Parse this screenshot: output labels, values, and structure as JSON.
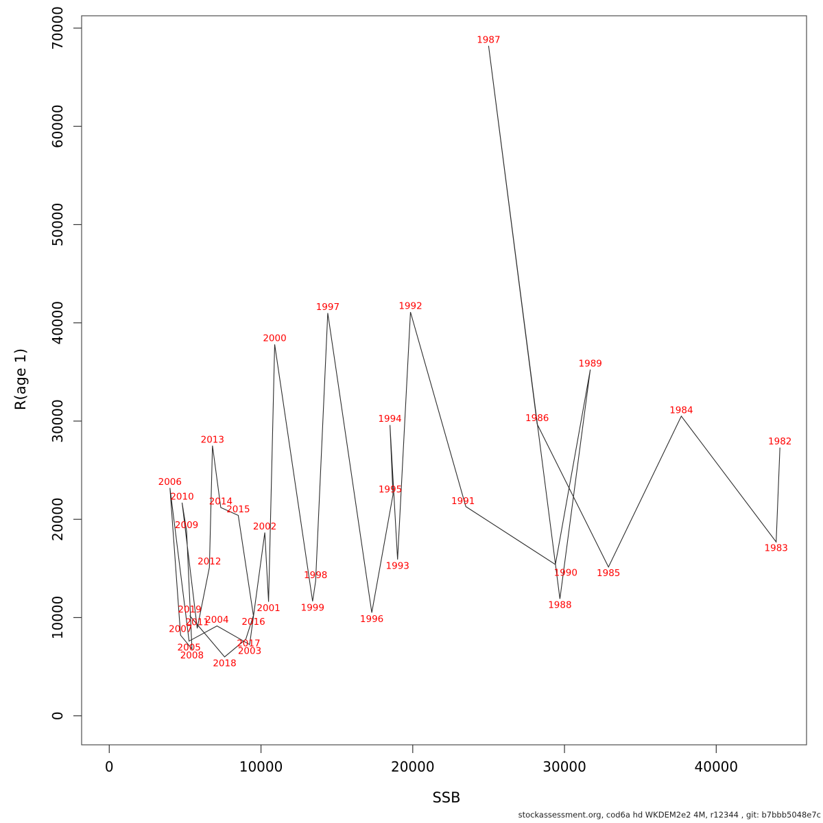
{
  "chart": {
    "xlabel": "SSB",
    "ylabel": "R(age 1)",
    "footer": "stockassessment.org, cod6a  hd  WKDEM2e2  4M, r12344 , git: b7bbb5048e7c",
    "label_color": "#ff0000",
    "line_color": "#2b2b2b",
    "x_ticks": [
      0,
      10000,
      20000,
      30000,
      40000
    ],
    "y_ticks": [
      0,
      10000,
      20000,
      30000,
      40000,
      50000,
      60000,
      70000
    ]
  },
  "chart_data": {
    "type": "line",
    "title": "",
    "xlabel": "SSB",
    "ylabel": "R(age 1)",
    "xlim": [
      -1800,
      45900
    ],
    "ylim": [
      -2950,
      71250
    ],
    "grid": false,
    "legend": "none",
    "description": "Stock-recruitment scatter: SSB vs recruitment at age 1, points labelled by year and connected in chronological order",
    "points": [
      {
        "year": "1982",
        "ssb": 44200,
        "rec": 27300,
        "label_pos": "above"
      },
      {
        "year": "1983",
        "ssb": 43950,
        "rec": 17700,
        "label_pos": "below"
      },
      {
        "year": "1984",
        "ssb": 37700,
        "rec": 30500,
        "label_pos": "above"
      },
      {
        "year": "1985",
        "ssb": 32900,
        "rec": 15150,
        "label_pos": "below"
      },
      {
        "year": "1986",
        "ssb": 28200,
        "rec": 29700,
        "label_pos": "above"
      },
      {
        "year": "1987",
        "ssb": 25000,
        "rec": 68200,
        "label_pos": "above"
      },
      {
        "year": "1988",
        "ssb": 29700,
        "rec": 11900,
        "label_pos": "below"
      },
      {
        "year": "1989",
        "ssb": 31700,
        "rec": 35250,
        "label_pos": "above"
      },
      {
        "year": "1990",
        "ssb": 29400,
        "rec": 15400,
        "label_pos": "below-right"
      },
      {
        "year": "1991",
        "ssb": 23500,
        "rec": 21300,
        "label_pos": "above-left"
      },
      {
        "year": "1992",
        "ssb": 19850,
        "rec": 41100,
        "label_pos": "above"
      },
      {
        "year": "1993",
        "ssb": 19000,
        "rec": 15900,
        "label_pos": "below"
      },
      {
        "year": "1994",
        "ssb": 18500,
        "rec": 29600,
        "label_pos": "above"
      },
      {
        "year": "1995",
        "ssb": 18700,
        "rec": 22500,
        "label_pos": "above-left"
      },
      {
        "year": "1996",
        "ssb": 17300,
        "rec": 10500,
        "label_pos": "below"
      },
      {
        "year": "1997",
        "ssb": 14400,
        "rec": 41000,
        "label_pos": "above"
      },
      {
        "year": "1998",
        "ssb": 13600,
        "rec": 13700,
        "label_pos": "above"
      },
      {
        "year": "1999",
        "ssb": 13400,
        "rec": 11650,
        "label_pos": "below"
      },
      {
        "year": "2000",
        "ssb": 10900,
        "rec": 37800,
        "label_pos": "above"
      },
      {
        "year": "2001",
        "ssb": 10500,
        "rec": 11600,
        "label_pos": "below"
      },
      {
        "year": "2002",
        "ssb": 10250,
        "rec": 18650,
        "label_pos": "above"
      },
      {
        "year": "2003",
        "ssb": 9250,
        "rec": 7250,
        "label_pos": "below"
      },
      {
        "year": "2004",
        "ssb": 7100,
        "rec": 9150,
        "label_pos": "above"
      },
      {
        "year": "2005",
        "ssb": 5260,
        "rec": 7600,
        "label_pos": "below"
      },
      {
        "year": "2006",
        "ssb": 4000,
        "rec": 23200,
        "label_pos": "above"
      },
      {
        "year": "2007",
        "ssb": 4700,
        "rec": 8200,
        "label_pos": "above"
      },
      {
        "year": "2008",
        "ssb": 5450,
        "rec": 6800,
        "label_pos": "below"
      },
      {
        "year": "2009",
        "ssb": 5100,
        "rec": 18800,
        "label_pos": "above"
      },
      {
        "year": "2010",
        "ssb": 4800,
        "rec": 21700,
        "label_pos": "above"
      },
      {
        "year": "2011",
        "ssb": 5800,
        "rec": 8900,
        "label_pos": "above"
      },
      {
        "year": "2012",
        "ssb": 6600,
        "rec": 15100,
        "label_pos": "above"
      },
      {
        "year": "2013",
        "ssb": 6800,
        "rec": 27500,
        "label_pos": "above"
      },
      {
        "year": "2014",
        "ssb": 7350,
        "rec": 21200,
        "label_pos": "above"
      },
      {
        "year": "2015",
        "ssb": 8500,
        "rec": 20400,
        "label_pos": "above"
      },
      {
        "year": "2016",
        "ssb": 9500,
        "rec": 10200,
        "label_pos": "below"
      },
      {
        "year": "2017",
        "ssb": 9000,
        "rec": 7800,
        "label_pos": "near-below"
      },
      {
        "year": "2018",
        "ssb": 7600,
        "rec": 6000,
        "label_pos": "below"
      },
      {
        "year": "2019",
        "ssb": 5300,
        "rec": 10200,
        "label_pos": "above"
      }
    ]
  }
}
